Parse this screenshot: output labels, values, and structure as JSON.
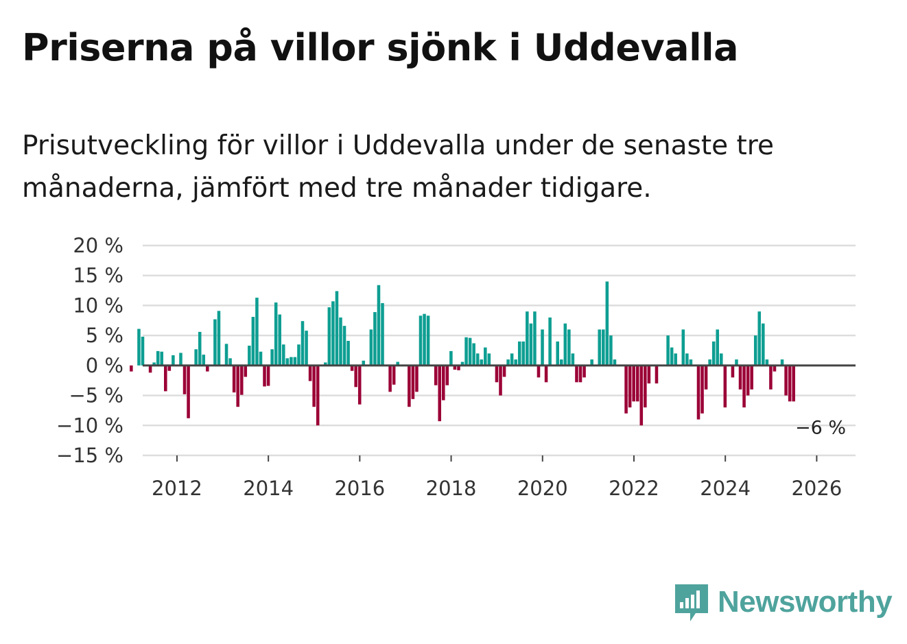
{
  "title": "Priserna på villor sjönk i Uddevalla",
  "subtitle": "Prisutveckling för villor i Uddevalla under de senaste tre månaderna, jämfört med tre månader tidigare.",
  "brand": {
    "name": "Newsworthy",
    "color": "#4fa39d",
    "icon": "bar-chart-speech-bubble-icon"
  },
  "colors": {
    "positive": "#0e9e92",
    "negative": "#9b0036"
  },
  "chart_data": {
    "type": "bar",
    "x_start": 2011.0,
    "x_step": 0.0833,
    "xlim": [
      2011.25,
      2026.85
    ],
    "ylim": [
      -15,
      20
    ],
    "yticks": [
      20,
      15,
      10,
      5,
      0,
      -5,
      -10,
      -15
    ],
    "ytick_labels": [
      "20 %",
      "15 %",
      "10 %",
      "5 %",
      "0 %",
      "−5 %",
      "−10 %",
      "−15 %"
    ],
    "xticks": [
      2012,
      2014,
      2016,
      2018,
      2020,
      2022,
      2024,
      2026
    ],
    "xtick_labels": [
      "2012",
      "2014",
      "2016",
      "2018",
      "2020",
      "2022",
      "2024",
      "2026"
    ],
    "values": [
      -1.0,
      0,
      6.1,
      4.8,
      0,
      -1.2,
      0.5,
      2.4,
      2.3,
      -4.3,
      -0.9,
      1.7,
      0,
      2.1,
      -4.8,
      -8.8,
      0,
      2.7,
      5.6,
      1.8,
      -1.0,
      0,
      7.7,
      9.1,
      0,
      3.6,
      1.2,
      -4.5,
      -6.9,
      -4.9,
      -1.9,
      3.3,
      8.1,
      11.3,
      2.3,
      -3.5,
      -3.4,
      2.7,
      10.5,
      8.5,
      3.5,
      1.2,
      1.4,
      1.4,
      3.5,
      7.4,
      5.8,
      -2.6,
      -6.9,
      -10.0,
      0,
      0.5,
      9.7,
      10.7,
      12.4,
      8.0,
      6.6,
      4.1,
      -0.9,
      -3.6,
      -6.5,
      0.8,
      0,
      6.0,
      8.9,
      13.4,
      10.4,
      0,
      -4.4,
      -3.2,
      0.6,
      0,
      0,
      -6.9,
      -5.6,
      -4.4,
      8.3,
      8.6,
      8.3,
      0,
      -3.3,
      -9.3,
      -5.8,
      -3.3,
      2.4,
      -0.7,
      -0.8,
      0.6,
      4.7,
      4.6,
      3.7,
      2.0,
      1.0,
      3.0,
      2.0,
      0,
      -2.8,
      -5.0,
      -1.9,
      1.0,
      2.0,
      1.0,
      4.0,
      4.0,
      9.0,
      7.0,
      9.0,
      -2.0,
      6.0,
      -2.8,
      8.0,
      0,
      4.0,
      1.0,
      7.0,
      6.0,
      2.0,
      -2.8,
      -2.8,
      -2.0,
      0,
      1.0,
      0,
      6.0,
      6.0,
      14.0,
      5.0,
      1.0,
      0,
      0,
      -8.0,
      -7.0,
      -6.0,
      -6.0,
      -10.0,
      -7.0,
      -3.0,
      0,
      -3.0,
      0,
      0,
      5.0,
      3.0,
      2.0,
      0,
      6.0,
      2.0,
      1.0,
      0,
      -9.0,
      -8.0,
      -4.0,
      1.0,
      4.0,
      6.0,
      2.0,
      -7.0,
      0,
      -2.0,
      1.0,
      -4.0,
      -7.0,
      -5.0,
      -4.0,
      5.0,
      9.0,
      7.0,
      1.0,
      -4.0,
      -1.0,
      0,
      1.0,
      -5.0,
      -6.0,
      -6.0
    ],
    "last_value_label": "−6 %"
  }
}
